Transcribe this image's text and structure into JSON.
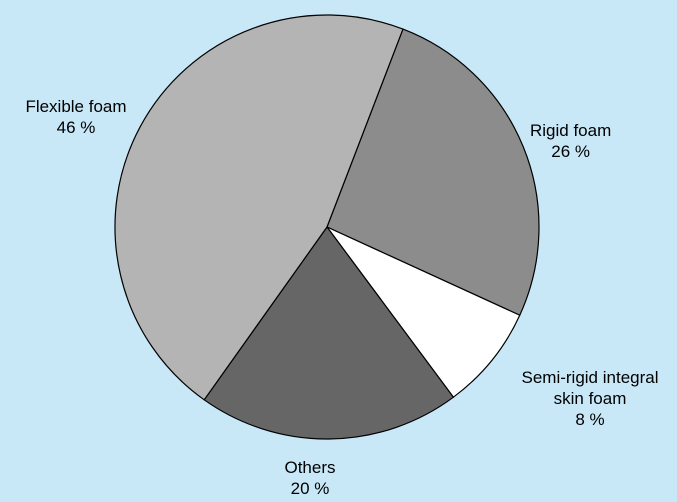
{
  "chart_data": {
    "type": "pie",
    "background": "#c8e8f8",
    "start_angle_deg": 21,
    "slices": [
      {
        "name": "Rigid foam",
        "name_lines": [
          "Rigid foam"
        ],
        "value": 26,
        "value_label": "26 %",
        "color": "#8c8c8c"
      },
      {
        "name": "Semi-rigid integral skin foam",
        "name_lines": [
          "Semi-rigid integral",
          "skin foam"
        ],
        "value": 8,
        "value_label": "8 %",
        "color": "#ffffff"
      },
      {
        "name": "Others",
        "name_lines": [
          "Others"
        ],
        "value": 20,
        "value_label": "20 %",
        "color": "#666666"
      },
      {
        "name": "Flexible foam",
        "name_lines": [
          "Flexible foam"
        ],
        "value": 46,
        "value_label": "46 %",
        "color": "#b4b4b4"
      }
    ]
  }
}
